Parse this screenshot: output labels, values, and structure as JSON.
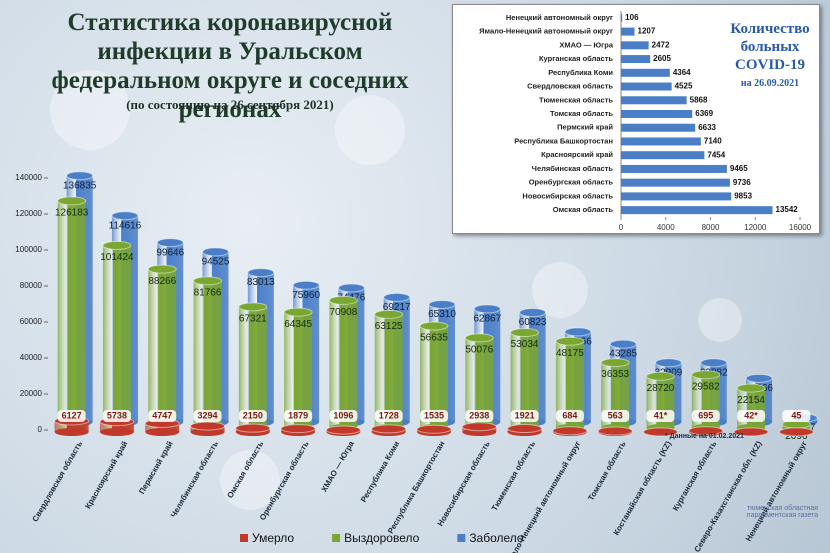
{
  "chart_data": [
    {
      "type": "bar3d",
      "title": "Статистика коронавирусной инфекции в Уральском федеральном округе и соседних регионах",
      "subtitle": "(по состоянию на 26 сентября 2021)",
      "categories": [
        "Свердловская область",
        "Красноярский край",
        "Пермский край",
        "Челябинская область",
        "Омская область",
        "Оренбургская область",
        "ХМАО — Югра",
        "Республика Коми",
        "Республика Башкортостан",
        "Новосибирская область",
        "Тюменская область",
        "Ямало-Ненецкий автономный округ",
        "Томская область",
        "Костанайская область (KZ)",
        "Курганская область",
        "Северо-Казахстанская обл. (KZ)",
        "Ненецкий автономный округ"
      ],
      "series": [
        {
          "name": "Умерло",
          "color": "#c0392b",
          "values": [
            6127,
            5738,
            4747,
            3294,
            2150,
            1879,
            1096,
            1728,
            1535,
            2938,
            1921,
            684,
            563,
            41,
            695,
            42,
            45
          ],
          "value_labels": [
            "6127",
            "5738",
            "4747",
            "3294",
            "2150",
            "1879",
            "1096",
            "1728",
            "1535",
            "2938",
            "1921",
            "684",
            "563",
            "41*",
            "695",
            "42*",
            "45"
          ]
        },
        {
          "name": "Выздоровело",
          "color": "#7aa632",
          "values": [
            126183,
            101424,
            88266,
            81766,
            67321,
            64345,
            70908,
            63125,
            56635,
            50076,
            53034,
            48175,
            36353,
            28720,
            29582,
            22154,
            2096
          ]
        },
        {
          "name": "Заболело",
          "color": "#4a7fc8",
          "values": [
            136835,
            114616,
            99646,
            94525,
            83013,
            75960,
            74476,
            69217,
            65310,
            62867,
            60823,
            50066,
            43285,
            32909,
            32882,
            24266,
            2247
          ]
        }
      ],
      "ylim": [
        0,
        150000
      ],
      "yticks": [
        0,
        20000,
        40000,
        60000,
        80000,
        100000,
        120000,
        140000
      ],
      "grid": false,
      "note": "* Данные на 01.02.2021",
      "legend": "bottom"
    },
    {
      "type": "hbar",
      "title": "Количество больных COVID-19",
      "subtitle": "на 26.09.2021",
      "color": "#4a7fc8",
      "categories": [
        "Ненецкий автономный округ",
        "Ямало-Ненецкий автономный округ",
        "ХМАО — Югра",
        "Курганская область",
        "Республика Коми",
        "Свердловская область",
        "Тюменская область",
        "Томская область",
        "Пермский край",
        "Республика Башкортостан",
        "Красноярский край",
        "Челябинская область",
        "Оренбургская область",
        "Новосибирская область",
        "Омская область"
      ],
      "values": [
        106,
        1207,
        2472,
        2605,
        4364,
        4525,
        5868,
        6369,
        6633,
        7140,
        7454,
        9465,
        9736,
        9853,
        13542
      ],
      "xlim": [
        0,
        16000
      ],
      "xticks": [
        0,
        4000,
        8000,
        12000,
        16000
      ],
      "grid": false
    }
  ],
  "watermark": "тюменская областная парламентская газета"
}
